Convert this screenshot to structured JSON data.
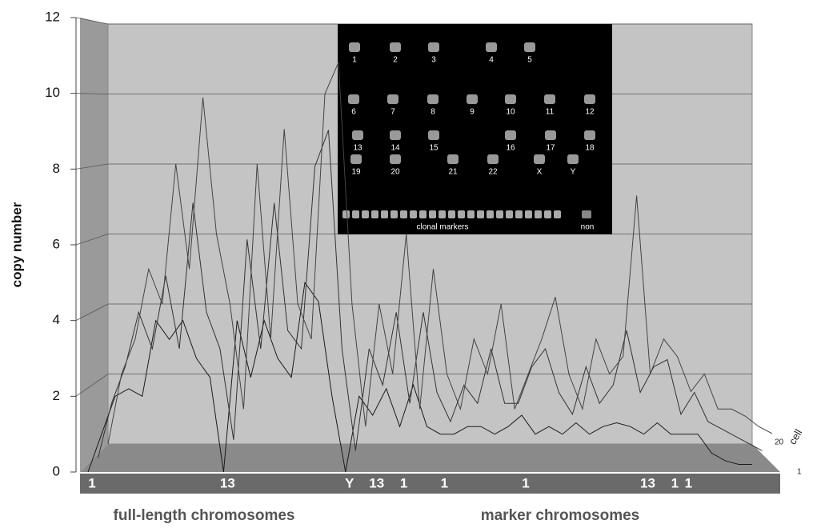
{
  "chart_data": {
    "type": "line3d",
    "y_label": "copy number",
    "ylim": [
      0,
      12
    ],
    "yticks": [
      0,
      2,
      4,
      6,
      8,
      10,
      12
    ],
    "categories": [
      "1",
      null,
      null,
      null,
      null,
      null,
      null,
      null,
      null,
      null,
      "13",
      null,
      null,
      null,
      null,
      null,
      null,
      null,
      null,
      "Y",
      null,
      "13",
      null,
      "1",
      null,
      null,
      "1",
      null,
      null,
      null,
      null,
      null,
      "1",
      null,
      null,
      null,
      null,
      null,
      null,
      null,
      null,
      "13",
      null,
      "1",
      "1",
      null,
      null,
      null,
      null,
      null
    ],
    "section_labels": [
      "full-length chromosomes",
      "marker chromosomes"
    ],
    "z_label": "cell",
    "zticks": [
      20,
      1
    ],
    "series": [
      {
        "color": "#1a1a1a",
        "values": [
          0,
          1,
          2,
          2.2,
          2,
          4,
          3.5,
          4,
          3,
          2.5,
          0,
          4,
          2.5,
          4,
          3,
          2.5,
          5,
          4.5,
          2,
          0,
          2,
          1.5,
          2.2,
          1.2,
          2.3,
          1.2,
          1,
          1,
          1.2,
          1.2,
          1,
          1.2,
          1.5,
          1,
          1.2,
          1,
          1.3,
          1,
          1.2,
          1.3,
          1.2,
          1,
          1.3,
          1,
          1,
          1,
          0.5,
          0.3,
          0.2,
          0.2
        ]
      },
      {
        "color": "#333333",
        "values": [
          0,
          1.5,
          2.5,
          4,
          3,
          5,
          3,
          7,
          4,
          3,
          0.5,
          6,
          3,
          7,
          3.5,
          3,
          8,
          9,
          3,
          0.2,
          3,
          2,
          4,
          1.5,
          4,
          1.8,
          1,
          2,
          1.5,
          3,
          1.5,
          1.5,
          2.5,
          3,
          1.8,
          1.2,
          2.5,
          1.5,
          2,
          3.5,
          1.8,
          2.5,
          2.7,
          1.2,
          1.8,
          1,
          0.8,
          0.6,
          0.4,
          0.2
        ]
      },
      {
        "color": "#444444",
        "values": [
          0,
          2,
          3,
          5,
          4,
          8,
          5,
          9.9,
          6,
          4,
          1,
          8,
          3,
          9,
          4,
          3,
          10,
          10.9,
          4,
          0.5,
          4,
          2,
          6,
          1,
          5,
          2,
          1,
          3,
          2,
          4,
          1,
          2,
          3,
          4.2,
          2,
          1,
          3,
          2,
          2.5,
          7.1,
          2,
          3,
          2.5,
          1.5,
          2,
          1,
          1,
          0.8,
          0.5,
          0.3
        ]
      }
    ],
    "karyotype": {
      "labels": [
        "1",
        "2",
        "3",
        "4",
        "5",
        "6",
        "7",
        "8",
        "9",
        "10",
        "11",
        "12",
        "13",
        "14",
        "15",
        "16",
        "17",
        "18",
        "19",
        "20",
        "21",
        "22",
        "X",
        "Y"
      ],
      "caption_left": "clonal markers",
      "caption_right": "non"
    }
  }
}
